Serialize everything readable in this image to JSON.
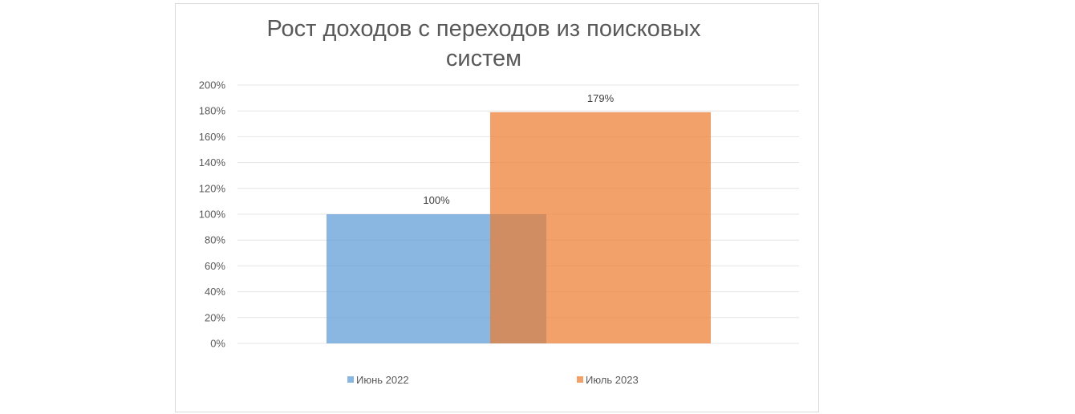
{
  "chart_data": {
    "type": "bar",
    "title_lines": [
      "Рост доходов с переходов из поисковых",
      "систем"
    ],
    "xlabel": "",
    "ylabel": "",
    "ylim": [
      0,
      2
    ],
    "y_ticks": [
      "0%",
      "20%",
      "40%",
      "60%",
      "80%",
      "100%",
      "120%",
      "140%",
      "160%",
      "180%",
      "200%"
    ],
    "grid": true,
    "legend_position": "bottom",
    "series": [
      {
        "name": "Июнь 2022",
        "value": 1.0,
        "label": "100%",
        "color": "#5b9bd5"
      },
      {
        "name": "Июль 2023",
        "value": 1.79,
        "label": "179%",
        "color": "#ed7d31"
      }
    ],
    "bar_overlap": true
  }
}
